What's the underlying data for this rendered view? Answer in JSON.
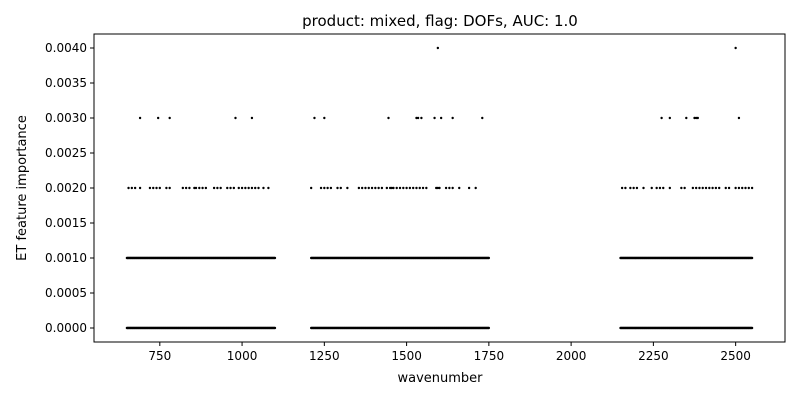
{
  "chart_data": {
    "type": "scatter",
    "title": "product: mixed, flag: DOFs, AUC: 1.0",
    "xlabel": "wavenumber",
    "ylabel": "ET feature importance",
    "xlim": [
      550,
      2650
    ],
    "ylim": [
      -0.0002,
      0.0042
    ],
    "xticks": [
      750,
      1000,
      1250,
      1500,
      1750,
      2000,
      2250,
      2500
    ],
    "xtick_labels": [
      "750",
      "1000",
      "1250",
      "1500",
      "1750",
      "2000",
      "2250",
      "2500"
    ],
    "yticks": [
      0.0,
      0.0005,
      0.001,
      0.0015,
      0.002,
      0.0025,
      0.003,
      0.0035,
      0.004
    ],
    "ytick_labels": [
      "0.0000",
      "0.0005",
      "0.0010",
      "0.0015",
      "0.0020",
      "0.0025",
      "0.0030",
      "0.0035",
      "0.0040"
    ],
    "grid": false,
    "marker_color": "#000000",
    "ranges": [
      [
        650,
        1100
      ],
      [
        1210,
        1750
      ],
      [
        2150,
        2550
      ]
    ],
    "series": [
      {
        "values_note_y": 0.0,
        "y": 0.0,
        "x_dense_ranges": [
          [
            650,
            1100
          ],
          [
            1210,
            1750
          ],
          [
            2150,
            2550
          ]
        ]
      },
      {
        "y": 0.001,
        "x_dense_ranges": [
          [
            650,
            1100
          ],
          [
            1210,
            1750
          ],
          [
            2150,
            2550
          ]
        ]
      },
      {
        "y": 0.002,
        "x": [
          655,
          665,
          675,
          690,
          720,
          730,
          740,
          750,
          770,
          780,
          820,
          830,
          840,
          855,
          860,
          870,
          880,
          890,
          915,
          925,
          935,
          955,
          965,
          975,
          990,
          1000,
          1010,
          1020,
          1030,
          1040,
          1050,
          1065,
          1080,
          1210,
          1240,
          1250,
          1260,
          1270,
          1290,
          1300,
          1320,
          1355,
          1365,
          1375,
          1385,
          1395,
          1405,
          1415,
          1425,
          1440,
          1450,
          1455,
          1460,
          1470,
          1480,
          1490,
          1500,
          1510,
          1520,
          1530,
          1540,
          1550,
          1560,
          1590,
          1595,
          1600,
          1620,
          1630,
          1640,
          1660,
          1690,
          1710,
          2155,
          2165,
          2180,
          2190,
          2200,
          2220,
          2245,
          2260,
          2270,
          2280,
          2300,
          2335,
          2345,
          2370,
          2380,
          2390,
          2400,
          2410,
          2420,
          2430,
          2440,
          2450,
          2470,
          2480,
          2500,
          2510,
          2520,
          2530,
          2540,
          2550
        ]
      },
      {
        "y": 0.003,
        "x": [
          690,
          745,
          780,
          980,
          1030,
          1220,
          1250,
          1445,
          1530,
          1535,
          1545,
          1585,
          1605,
          1640,
          1730,
          2275,
          2300,
          2350,
          2375,
          2380,
          2385,
          2510
        ]
      },
      {
        "y": 0.004,
        "x": [
          1595,
          2500
        ]
      }
    ]
  }
}
